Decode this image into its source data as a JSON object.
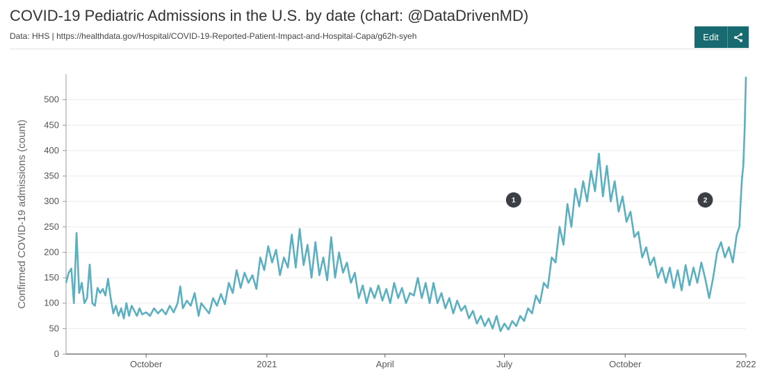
{
  "header": {
    "title": "COVID-19 Pediatric Admissions in the U.S. by date (chart: @DataDrivenMD)",
    "source": "Data: HHS | https://healthdata.gov/Hospital/COVID-19-Reported-Patient-Impact-and-Hospital-Capa/g62h-syeh",
    "edit_label": "Edit",
    "share_icon": "share-icon"
  },
  "colors": {
    "line": "#5aafc0",
    "button": "#176a6f",
    "annotation": "#3b3f45"
  },
  "chart_data": {
    "type": "line",
    "title": "COVID-19 Pediatric Admissions in the U.S. by date (chart: @DataDrivenMD)",
    "ylabel": "Confirmed COVID-19 admissions (count)",
    "xlabel": "",
    "ylim": [
      0,
      550
    ],
    "xlim": [
      "2020-08-01",
      "2022-01-01"
    ],
    "y_ticks": [
      0,
      50,
      100,
      150,
      200,
      250,
      300,
      350,
      400,
      450,
      500
    ],
    "x_ticks": [
      {
        "date": "2020-10-01",
        "label": "October"
      },
      {
        "date": "2021-01-01",
        "label": "2021"
      },
      {
        "date": "2021-04-01",
        "label": "April"
      },
      {
        "date": "2021-07-01",
        "label": "July"
      },
      {
        "date": "2021-10-01",
        "label": "October"
      },
      {
        "date": "2022-01-01",
        "label": "2022"
      }
    ],
    "grid": true,
    "annotations": [
      {
        "label": "1",
        "date": "2021-07-08",
        "y": 303
      },
      {
        "label": "2",
        "date": "2021-12-01",
        "y": 303
      }
    ],
    "series": [
      {
        "points": [
          [
            "2020-08-01",
            140
          ],
          [
            "2020-08-03",
            160
          ],
          [
            "2020-08-05",
            168
          ],
          [
            "2020-08-07",
            100
          ],
          [
            "2020-08-09",
            238
          ],
          [
            "2020-08-11",
            120
          ],
          [
            "2020-08-13",
            140
          ],
          [
            "2020-08-15",
            100
          ],
          [
            "2020-08-17",
            110
          ],
          [
            "2020-08-19",
            176
          ],
          [
            "2020-08-21",
            100
          ],
          [
            "2020-08-23",
            95
          ],
          [
            "2020-08-25",
            130
          ],
          [
            "2020-08-27",
            120
          ],
          [
            "2020-08-29",
            128
          ],
          [
            "2020-08-31",
            115
          ],
          [
            "2020-09-02",
            148
          ],
          [
            "2020-09-04",
            110
          ],
          [
            "2020-09-06",
            80
          ],
          [
            "2020-09-08",
            95
          ],
          [
            "2020-09-10",
            75
          ],
          [
            "2020-09-12",
            90
          ],
          [
            "2020-09-14",
            70
          ],
          [
            "2020-09-16",
            100
          ],
          [
            "2020-09-18",
            75
          ],
          [
            "2020-09-20",
            95
          ],
          [
            "2020-09-22",
            85
          ],
          [
            "2020-09-24",
            75
          ],
          [
            "2020-09-26",
            90
          ],
          [
            "2020-09-28",
            78
          ],
          [
            "2020-10-01",
            82
          ],
          [
            "2020-10-04",
            75
          ],
          [
            "2020-10-07",
            90
          ],
          [
            "2020-10-10",
            80
          ],
          [
            "2020-10-13",
            88
          ],
          [
            "2020-10-16",
            78
          ],
          [
            "2020-10-19",
            95
          ],
          [
            "2020-10-22",
            82
          ],
          [
            "2020-10-25",
            100
          ],
          [
            "2020-10-27",
            133
          ],
          [
            "2020-10-29",
            90
          ],
          [
            "2020-11-01",
            105
          ],
          [
            "2020-11-04",
            95
          ],
          [
            "2020-11-07",
            120
          ],
          [
            "2020-11-10",
            75
          ],
          [
            "2020-11-12",
            100
          ],
          [
            "2020-11-15",
            90
          ],
          [
            "2020-11-18",
            80
          ],
          [
            "2020-11-21",
            110
          ],
          [
            "2020-11-24",
            95
          ],
          [
            "2020-11-27",
            118
          ],
          [
            "2020-11-30",
            98
          ],
          [
            "2020-12-03",
            140
          ],
          [
            "2020-12-06",
            120
          ],
          [
            "2020-12-09",
            165
          ],
          [
            "2020-12-12",
            130
          ],
          [
            "2020-12-15",
            160
          ],
          [
            "2020-12-18",
            140
          ],
          [
            "2020-12-21",
            155
          ],
          [
            "2020-12-24",
            128
          ],
          [
            "2020-12-27",
            190
          ],
          [
            "2020-12-30",
            165
          ],
          [
            "2021-01-02",
            212
          ],
          [
            "2021-01-05",
            180
          ],
          [
            "2021-01-08",
            205
          ],
          [
            "2021-01-11",
            155
          ],
          [
            "2021-01-14",
            190
          ],
          [
            "2021-01-17",
            170
          ],
          [
            "2021-01-20",
            235
          ],
          [
            "2021-01-23",
            170
          ],
          [
            "2021-01-26",
            246
          ],
          [
            "2021-01-29",
            175
          ],
          [
            "2021-02-01",
            215
          ],
          [
            "2021-02-04",
            150
          ],
          [
            "2021-02-07",
            220
          ],
          [
            "2021-02-10",
            155
          ],
          [
            "2021-02-13",
            190
          ],
          [
            "2021-02-16",
            145
          ],
          [
            "2021-02-19",
            230
          ],
          [
            "2021-02-22",
            150
          ],
          [
            "2021-02-25",
            200
          ],
          [
            "2021-02-28",
            160
          ],
          [
            "2021-03-03",
            180
          ],
          [
            "2021-03-06",
            140
          ],
          [
            "2021-03-09",
            160
          ],
          [
            "2021-03-12",
            110
          ],
          [
            "2021-03-15",
            135
          ],
          [
            "2021-03-18",
            100
          ],
          [
            "2021-03-21",
            130
          ],
          [
            "2021-03-24",
            110
          ],
          [
            "2021-03-27",
            135
          ],
          [
            "2021-03-30",
            105
          ],
          [
            "2021-04-02",
            128
          ],
          [
            "2021-04-05",
            100
          ],
          [
            "2021-04-08",
            140
          ],
          [
            "2021-04-11",
            110
          ],
          [
            "2021-04-14",
            130
          ],
          [
            "2021-04-17",
            100
          ],
          [
            "2021-04-20",
            120
          ],
          [
            "2021-04-23",
            115
          ],
          [
            "2021-04-26",
            150
          ],
          [
            "2021-04-29",
            110
          ],
          [
            "2021-05-02",
            140
          ],
          [
            "2021-05-05",
            100
          ],
          [
            "2021-05-08",
            140
          ],
          [
            "2021-05-11",
            100
          ],
          [
            "2021-05-14",
            120
          ],
          [
            "2021-05-17",
            90
          ],
          [
            "2021-05-20",
            110
          ],
          [
            "2021-05-23",
            80
          ],
          [
            "2021-05-26",
            105
          ],
          [
            "2021-05-29",
            85
          ],
          [
            "2021-06-01",
            95
          ],
          [
            "2021-06-04",
            70
          ],
          [
            "2021-06-07",
            85
          ],
          [
            "2021-06-10",
            60
          ],
          [
            "2021-06-13",
            75
          ],
          [
            "2021-06-16",
            55
          ],
          [
            "2021-06-19",
            70
          ],
          [
            "2021-06-22",
            50
          ],
          [
            "2021-06-25",
            75
          ],
          [
            "2021-06-28",
            45
          ],
          [
            "2021-07-01",
            60
          ],
          [
            "2021-07-04",
            48
          ],
          [
            "2021-07-07",
            65
          ],
          [
            "2021-07-10",
            55
          ],
          [
            "2021-07-13",
            75
          ],
          [
            "2021-07-16",
            65
          ],
          [
            "2021-07-19",
            90
          ],
          [
            "2021-07-22",
            80
          ],
          [
            "2021-07-25",
            115
          ],
          [
            "2021-07-28",
            100
          ],
          [
            "2021-07-31",
            140
          ],
          [
            "2021-08-03",
            130
          ],
          [
            "2021-08-06",
            190
          ],
          [
            "2021-08-09",
            180
          ],
          [
            "2021-08-12",
            250
          ],
          [
            "2021-08-15",
            215
          ],
          [
            "2021-08-18",
            295
          ],
          [
            "2021-08-21",
            250
          ],
          [
            "2021-08-24",
            325
          ],
          [
            "2021-08-27",
            290
          ],
          [
            "2021-08-30",
            340
          ],
          [
            "2021-09-02",
            300
          ],
          [
            "2021-09-05",
            360
          ],
          [
            "2021-09-08",
            320
          ],
          [
            "2021-09-11",
            394
          ],
          [
            "2021-09-14",
            310
          ],
          [
            "2021-09-17",
            370
          ],
          [
            "2021-09-20",
            300
          ],
          [
            "2021-09-23",
            340
          ],
          [
            "2021-09-26",
            280
          ],
          [
            "2021-09-29",
            310
          ],
          [
            "2021-10-02",
            260
          ],
          [
            "2021-10-05",
            280
          ],
          [
            "2021-10-08",
            230
          ],
          [
            "2021-10-11",
            240
          ],
          [
            "2021-10-14",
            190
          ],
          [
            "2021-10-17",
            210
          ],
          [
            "2021-10-20",
            175
          ],
          [
            "2021-10-23",
            190
          ],
          [
            "2021-10-26",
            150
          ],
          [
            "2021-10-29",
            170
          ],
          [
            "2021-11-01",
            140
          ],
          [
            "2021-11-04",
            170
          ],
          [
            "2021-11-07",
            130
          ],
          [
            "2021-11-10",
            165
          ],
          [
            "2021-11-13",
            125
          ],
          [
            "2021-11-16",
            175
          ],
          [
            "2021-11-19",
            135
          ],
          [
            "2021-11-22",
            170
          ],
          [
            "2021-11-25",
            140
          ],
          [
            "2021-11-28",
            180
          ],
          [
            "2021-12-01",
            148
          ],
          [
            "2021-12-04",
            110
          ],
          [
            "2021-12-07",
            150
          ],
          [
            "2021-12-10",
            200
          ],
          [
            "2021-12-13",
            220
          ],
          [
            "2021-12-16",
            190
          ],
          [
            "2021-12-19",
            210
          ],
          [
            "2021-12-22",
            180
          ],
          [
            "2021-12-25",
            235
          ],
          [
            "2021-12-27",
            250
          ],
          [
            "2021-12-28",
            300
          ],
          [
            "2021-12-29",
            345
          ],
          [
            "2021-12-30",
            370
          ],
          [
            "2021-12-31",
            440
          ],
          [
            "2022-01-01",
            545
          ]
        ]
      }
    ]
  }
}
